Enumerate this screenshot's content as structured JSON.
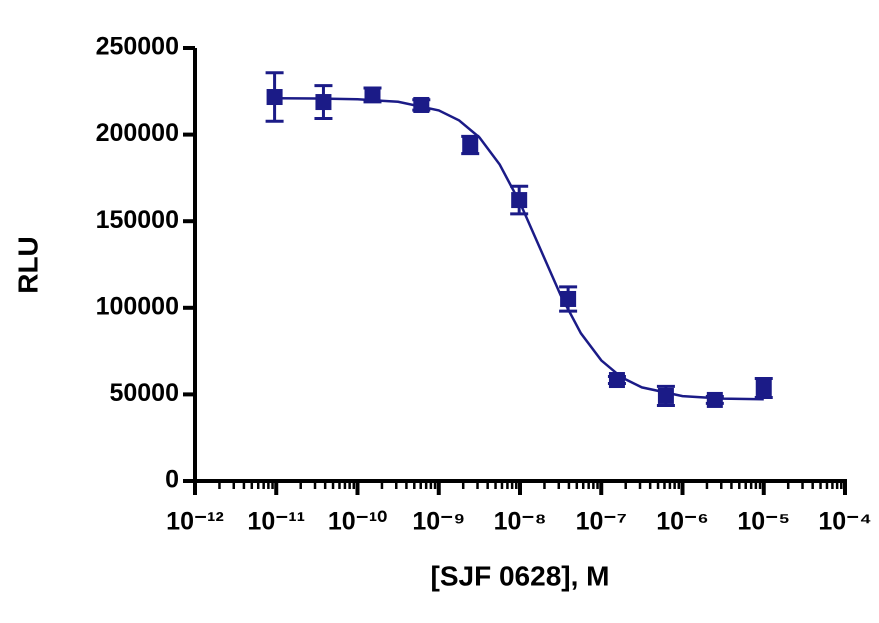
{
  "chart_data": {
    "type": "scatter",
    "xscale": "log",
    "color": "#1b1b87",
    "xlabel": "[SJF 0628], M",
    "ylabel": "RLU",
    "x": [
      9.54e-12,
      3.81e-11,
      1.53e-10,
      6.1e-10,
      2.44e-09,
      9.77e-09,
      3.91e-08,
      1.56e-07,
      6.25e-07,
      2.5e-06,
      1e-05
    ],
    "values": [
      221700,
      218800,
      222900,
      217100,
      194000,
      162200,
      105100,
      58300,
      49100,
      46800,
      53700
    ],
    "errors": [
      14000,
      9500,
      4000,
      3000,
      5000,
      8000,
      7000,
      2000,
      5500,
      2000,
      5500
    ],
    "curve": {
      "x": [
        1e-11,
        3.162e-11,
        1e-10,
        3.162e-10,
        1e-09,
        1.778e-09,
        3.162e-09,
        5.623e-09,
        1e-08,
        1.778e-08,
        3.162e-08,
        5.623e-08,
        1e-07,
        1.778e-07,
        3.162e-07,
        1e-06,
        3.162e-06,
        1e-05
      ],
      "values": [
        220950,
        220836,
        220419,
        218955,
        213955,
        208200,
        198357,
        182750,
        160650,
        134000,
        107333,
        85258,
        69648,
        59803,
        54042,
        49044,
        47581,
        47164
      ]
    },
    "xlim": [
      1e-12,
      0.0001
    ],
    "xticks": [
      {
        "value": 1e-12,
        "label": "10⁻¹²"
      },
      {
        "value": 1e-11,
        "label": "10⁻¹¹"
      },
      {
        "value": 1e-10,
        "label": "10⁻¹⁰"
      },
      {
        "value": 1e-09,
        "label": "10⁻⁹"
      },
      {
        "value": 1e-08,
        "label": "10⁻⁸"
      },
      {
        "value": 1e-07,
        "label": "10⁻⁷"
      },
      {
        "value": 1e-06,
        "label": "10⁻⁶"
      },
      {
        "value": 1e-05,
        "label": "10⁻⁵"
      },
      {
        "value": 0.0001,
        "label": "10⁻⁴"
      }
    ],
    "ylim": [
      0,
      250000
    ],
    "yticks": [
      0,
      50000,
      100000,
      150000,
      200000,
      250000
    ]
  }
}
